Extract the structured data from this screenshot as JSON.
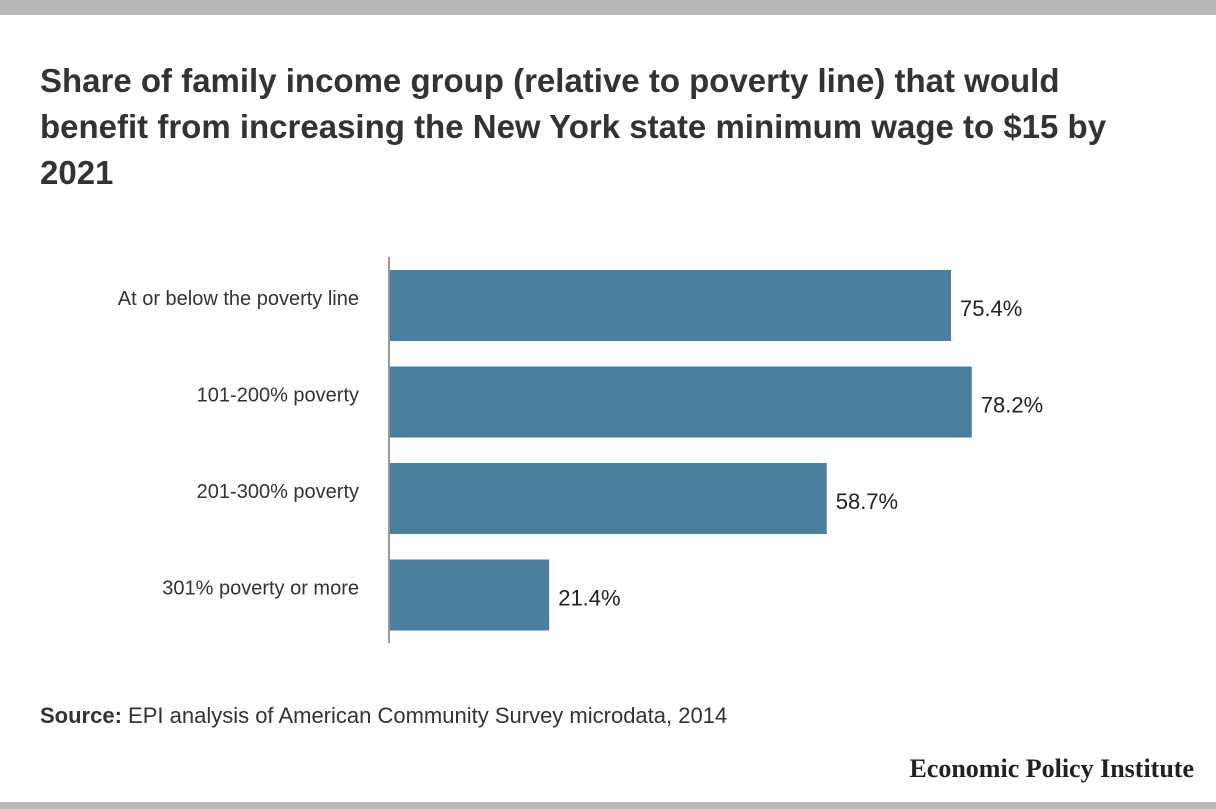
{
  "header": {
    "title": "Share of family income group (relative to poverty line) that would benefit from increasing the New York state minimum wage to $15 by 2021"
  },
  "chart_data": {
    "type": "bar",
    "orientation": "horizontal",
    "categories": [
      "At or below the poverty line",
      "101-200% poverty",
      "201-300% poverty",
      "301% poverty or more"
    ],
    "values": [
      75.4,
      78.2,
      58.7,
      21.4
    ],
    "value_labels": [
      "75.4%",
      "78.2%",
      "58.7%",
      "21.4%"
    ],
    "title": "Share of family income group (relative to poverty line) that would benefit from increasing the New York state minimum wage to $15 by 2021",
    "xlabel": "",
    "ylabel": "",
    "xlim": [
      0,
      100
    ],
    "grid": false,
    "legend": "none",
    "bar_color": "#4a7fa0"
  },
  "footer": {
    "source_label": "Source:",
    "source_text": " EPI analysis of American Community Survey microdata, 2014",
    "brand": "Economic Policy Institute"
  },
  "colors": {
    "bar": "#4a7fa0",
    "frame": "#b8b8b8",
    "text": "#333333"
  }
}
